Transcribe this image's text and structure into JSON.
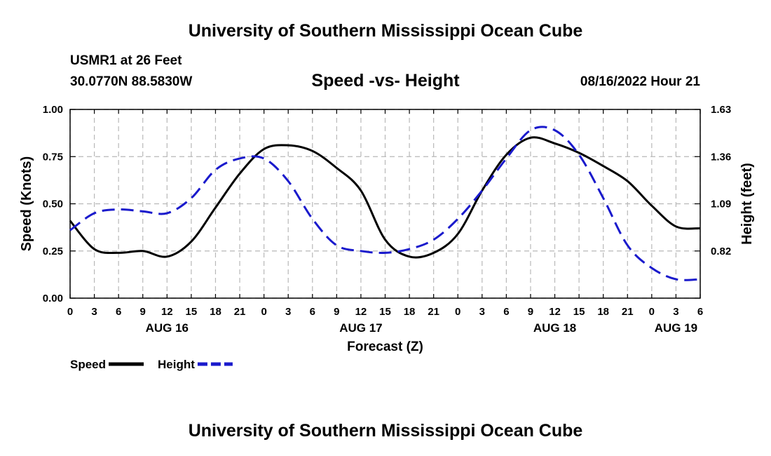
{
  "header": {
    "title": "University of Southern Mississippi Ocean Cube",
    "station": "USMR1 at 26 Feet",
    "coords": "30.0770N  88.5830W",
    "subtitle": "Speed -vs- Height",
    "datetime": "08/16/2022 Hour 21",
    "footer_title": "University of Southern Mississippi Ocean Cube"
  },
  "chart_data": {
    "type": "line",
    "title": "Speed -vs- Height",
    "xlabel": "Forecast (Z)",
    "ylabel": "Speed (Knots)",
    "y2label": "Height (feet)",
    "x_range": [
      0,
      78
    ],
    "x_hours": [
      0,
      3,
      6,
      9,
      12,
      15,
      18,
      21,
      24,
      27,
      30,
      33,
      36,
      39,
      42,
      45,
      48,
      51,
      54,
      57,
      60,
      63,
      66,
      69,
      72,
      75,
      78
    ],
    "x_tick_labels": [
      "0",
      "3",
      "6",
      "9",
      "12",
      "15",
      "18",
      "21",
      "0",
      "3",
      "6",
      "9",
      "12",
      "15",
      "18",
      "21",
      "0",
      "3",
      "6",
      "9",
      "12",
      "15",
      "18",
      "21",
      "0",
      "3",
      "6"
    ],
    "day_labels": [
      {
        "label": "AUG 16",
        "hour": 12
      },
      {
        "label": "AUG 17",
        "hour": 36
      },
      {
        "label": "AUG 18",
        "hour": 60
      },
      {
        "label": "AUG 19",
        "hour": 75
      }
    ],
    "ylim": [
      0,
      1
    ],
    "y_ticks": [
      0,
      0.25,
      0.5,
      0.75,
      1.0
    ],
    "y_tick_labels": [
      "0.00",
      "0.25",
      "0.50",
      "0.75",
      "1.00"
    ],
    "y2_ticks": [
      0,
      0.25,
      0.5,
      0.75,
      1.0
    ],
    "y2_tick_labels": [
      "",
      "0.82",
      "1.09",
      "1.36",
      "1.63"
    ],
    "grid": true,
    "series": [
      {
        "name": "Speed",
        "color": "#000000",
        "dash": "solid",
        "axis": "left",
        "values": [
          0.41,
          0.26,
          0.24,
          0.25,
          0.22,
          0.3,
          0.48,
          0.66,
          0.79,
          0.81,
          0.78,
          0.69,
          0.57,
          0.31,
          0.22,
          0.24,
          0.34,
          0.57,
          0.76,
          0.85,
          0.82,
          0.77,
          0.7,
          0.62,
          0.49,
          0.38,
          0.37
        ]
      },
      {
        "name": "Height",
        "color": "#1a1acc",
        "dash": "dashed",
        "axis": "right",
        "values": [
          0.36,
          0.45,
          0.47,
          0.46,
          0.45,
          0.53,
          0.68,
          0.74,
          0.74,
          0.62,
          0.42,
          0.28,
          0.25,
          0.24,
          0.26,
          0.31,
          0.42,
          0.57,
          0.74,
          0.89,
          0.89,
          0.76,
          0.53,
          0.28,
          0.16,
          0.1,
          0.1
        ]
      }
    ]
  }
}
